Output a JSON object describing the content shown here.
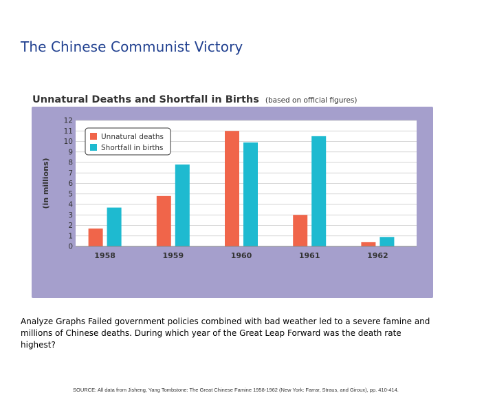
{
  "slide": {
    "title": "The Chinese Communist Victory",
    "caption": "Analyze Graphs Failed government policies combined with bad weather led to a severe famine and millions of Chinese deaths. During which year of the Great Leap Forward was the death rate highest?"
  },
  "chart_data": {
    "type": "bar",
    "title": "Unnatural Deaths and Shortfall in Births",
    "subtitle": "(based on official figures)",
    "ylabel": "(in millions)",
    "xlabel": "",
    "categories": [
      "1958",
      "1959",
      "1960",
      "1961",
      "1962"
    ],
    "series": [
      {
        "name": "Unnatural deaths",
        "color": "#f0654a",
        "values": [
          1.7,
          4.8,
          11.0,
          3.0,
          0.4
        ]
      },
      {
        "name": "Shortfall in births",
        "color": "#1ebad0",
        "values": [
          3.7,
          7.8,
          9.9,
          10.5,
          0.9
        ]
      }
    ],
    "ylim": [
      0,
      12
    ],
    "yticks": [
      "0",
      "1",
      "2",
      "3",
      "4",
      "5",
      "6",
      "7",
      "8",
      "9",
      "10",
      "11",
      "12"
    ],
    "grid": true,
    "legend_position": "top-left",
    "plot_background": "#ffffff",
    "panel_background": "#a59fcc",
    "source": "SOURCE: All data from Jisheng, Yang Tombstone: The Great Chinese Famine 1958-1962 (New York: Farrar, Straus, and Giroux), pp. 410-414."
  }
}
